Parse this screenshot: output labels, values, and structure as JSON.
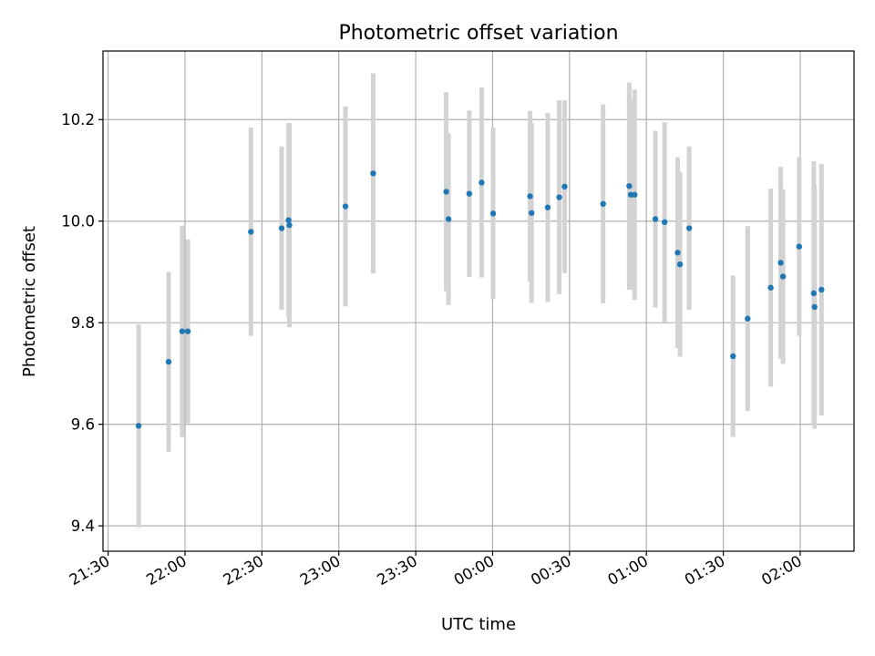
{
  "chart_data": {
    "type": "scatter",
    "title": "Photometric offset variation",
    "xlabel": "UTC time",
    "ylabel": "Photometric offset",
    "x_unit": "minutes",
    "xlim": [
      -2,
      291
    ],
    "ylim": [
      9.35,
      10.335
    ],
    "grid": true,
    "x_ticks": [
      {
        "value": 0,
        "label": "21:30"
      },
      {
        "value": 30,
        "label": "22:00"
      },
      {
        "value": 60,
        "label": "22:30"
      },
      {
        "value": 90,
        "label": "23:00"
      },
      {
        "value": 120,
        "label": "23:30"
      },
      {
        "value": 150,
        "label": "00:00"
      },
      {
        "value": 180,
        "label": "00:30"
      },
      {
        "value": 210,
        "label": "01:00"
      },
      {
        "value": 240,
        "label": "01:30"
      },
      {
        "value": 270,
        "label": "02:00"
      }
    ],
    "y_ticks": [
      9.4,
      9.6,
      9.8,
      10.0,
      10.2
    ],
    "y_tick_labels": [
      "9.4",
      "9.6",
      "9.8",
      "10.0",
      "10.2"
    ],
    "marker_color": "#1f77b4",
    "errorbar_color": "#d3d3d3",
    "points": [
      {
        "x": 11.9,
        "y": 9.597,
        "err": 0.2
      },
      {
        "x": 23.6,
        "y": 9.723,
        "err": 0.177
      },
      {
        "x": 28.9,
        "y": 9.783,
        "err": 0.208
      },
      {
        "x": 31.1,
        "y": 9.783,
        "err": 0.181
      },
      {
        "x": 55.7,
        "y": 9.979,
        "err": 0.205
      },
      {
        "x": 67.7,
        "y": 9.986,
        "err": 0.161
      },
      {
        "x": 70.4,
        "y": 10.002,
        "err": 0.191
      },
      {
        "x": 70.7,
        "y": 9.992,
        "err": 0.201
      },
      {
        "x": 92.6,
        "y": 10.029,
        "err": 0.197
      },
      {
        "x": 103.4,
        "y": 10.094,
        "err": 0.197
      },
      {
        "x": 131.9,
        "y": 10.058,
        "err": 0.196
      },
      {
        "x": 132.8,
        "y": 10.004,
        "err": 0.169
      },
      {
        "x": 140.9,
        "y": 10.054,
        "err": 0.164
      },
      {
        "x": 145.7,
        "y": 10.076,
        "err": 0.187
      },
      {
        "x": 150.2,
        "y": 10.015,
        "err": 0.169
      },
      {
        "x": 164.6,
        "y": 10.049,
        "err": 0.168
      },
      {
        "x": 165.2,
        "y": 10.016,
        "err": 0.177
      },
      {
        "x": 171.5,
        "y": 10.027,
        "err": 0.186
      },
      {
        "x": 176.0,
        "y": 10.047,
        "err": 0.191
      },
      {
        "x": 178.1,
        "y": 10.068,
        "err": 0.17
      },
      {
        "x": 193.1,
        "y": 10.034,
        "err": 0.196
      },
      {
        "x": 203.3,
        "y": 10.069,
        "err": 0.204
      },
      {
        "x": 203.9,
        "y": 10.052,
        "err": 0.187
      },
      {
        "x": 205.4,
        "y": 10.052,
        "err": 0.207
      },
      {
        "x": 213.5,
        "y": 10.004,
        "err": 0.174
      },
      {
        "x": 217.1,
        "y": 9.998,
        "err": 0.197
      },
      {
        "x": 222.2,
        "y": 9.938,
        "err": 0.188
      },
      {
        "x": 223.1,
        "y": 9.915,
        "err": 0.182
      },
      {
        "x": 226.7,
        "y": 9.986,
        "err": 0.161
      },
      {
        "x": 243.8,
        "y": 9.734,
        "err": 0.159
      },
      {
        "x": 249.5,
        "y": 9.808,
        "err": 0.182
      },
      {
        "x": 258.5,
        "y": 9.869,
        "err": 0.195
      },
      {
        "x": 262.4,
        "y": 9.918,
        "err": 0.189
      },
      {
        "x": 263.3,
        "y": 9.891,
        "err": 0.172
      },
      {
        "x": 269.6,
        "y": 9.95,
        "err": 0.176
      },
      {
        "x": 275.3,
        "y": 9.858,
        "err": 0.26
      },
      {
        "x": 275.6,
        "y": 9.831,
        "err": 0.24
      },
      {
        "x": 278.3,
        "y": 9.865,
        "err": 0.248
      }
    ]
  }
}
